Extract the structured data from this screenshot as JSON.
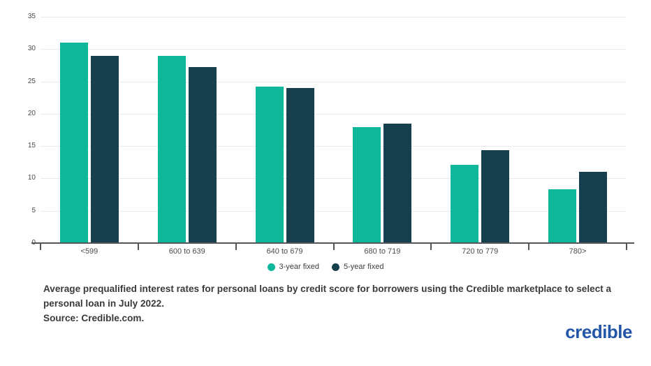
{
  "chart_data": {
    "type": "bar",
    "categories": [
      "<599",
      "600 to 639",
      "640 to 679",
      "680 to 719",
      "720 to 779",
      "780>"
    ],
    "series": [
      {
        "name": "3-year fixed",
        "color": "#0EB69A",
        "values": [
          31.0,
          28.9,
          24.2,
          17.9,
          12.1,
          8.3
        ]
      },
      {
        "name": "5-year fixed",
        "color": "#16404E",
        "values": [
          28.9,
          27.2,
          24.0,
          18.5,
          14.4,
          11.0
        ]
      }
    ],
    "title": "",
    "xlabel": "",
    "ylabel": "",
    "ylim": [
      0,
      35
    ],
    "yticks": [
      35,
      30,
      25,
      20,
      15,
      10,
      5,
      0
    ],
    "grid": true,
    "legend_position": "bottom-center",
    "axis_color": "#55565a",
    "gridline_color": "#e9e9e9"
  },
  "legend": {
    "items": [
      {
        "label": "3-year fixed",
        "color": "#0EB69A"
      },
      {
        "label": "5-year fixed",
        "color": "#16404E"
      }
    ]
  },
  "caption": {
    "text": "Average prequalified interest rates for personal loans by credit score for borrowers using the Credible marketplace to select a personal loan in July 2022.",
    "source": "Source: Credible.com."
  },
  "logo": {
    "text": "credible",
    "color": "#2356A7"
  }
}
